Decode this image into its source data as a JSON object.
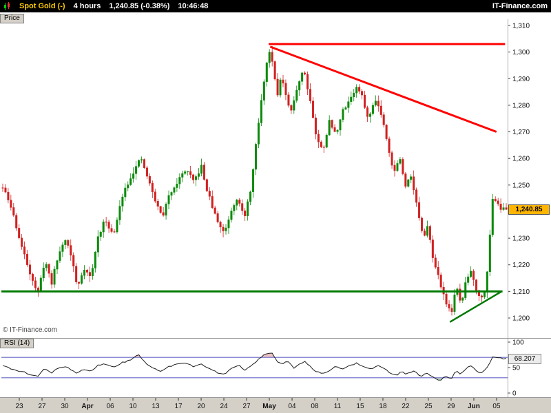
{
  "header": {
    "symbol": "Spot Gold (-)",
    "timeframe": "4 hours",
    "price_change": "1,240.85 (-0.38%)",
    "time": "10:46:48",
    "brand": "IT-Finance.com"
  },
  "price_panel": {
    "tab_label": "Price",
    "copyright": "© IT-Finance.com",
    "badge_label": "1,240.85"
  },
  "rsi_panel": {
    "label": "RSI (14)",
    "badge_label": "68.207"
  },
  "colors": {
    "up": "#0a8a0a",
    "down": "#d02020",
    "strip_bg": "#d4d0c8",
    "badge_price_bg": "#ffb400",
    "rsi_line": "#1a1a1a",
    "rsi_level": "#6666c8",
    "rsi_over_fill": "#e9b8b8",
    "rsi_under_fill": "#b9dcb9",
    "support": "#007a00",
    "resistance": "#ff0000"
  },
  "chart_data": {
    "type": "candlestick",
    "title": "Spot Gold (-) 4 hours",
    "last_price": 1240.85,
    "candle_count": 186,
    "y_axis": {
      "ticks": [
        {
          "v": 1310,
          "label": "1,310"
        },
        {
          "v": 1300,
          "label": "1,300"
        },
        {
          "v": 1290,
          "label": "1,290"
        },
        {
          "v": 1280,
          "label": "1,280"
        },
        {
          "v": 1270,
          "label": "1,270"
        },
        {
          "v": 1260,
          "label": "1,260"
        },
        {
          "v": 1250,
          "label": "1,250"
        },
        {
          "v": 1240,
          "label": "1,240"
        },
        {
          "v": 1230,
          "label": "1,230"
        },
        {
          "v": 1220,
          "label": "1,220"
        },
        {
          "v": 1210,
          "label": "1,210"
        },
        {
          "v": 1200,
          "label": "1,200"
        }
      ]
    },
    "x_ticks": [
      {
        "label": "23",
        "x": 0.0354
      },
      {
        "label": "27",
        "x": 0.0803
      },
      {
        "label": "30",
        "x": 0.1252
      },
      {
        "label": "Apr",
        "x": 0.1701
      },
      {
        "label": "06",
        "x": 0.215
      },
      {
        "label": "10",
        "x": 0.2599
      },
      {
        "label": "13",
        "x": 0.3048
      },
      {
        "label": "17",
        "x": 0.3497
      },
      {
        "label": "20",
        "x": 0.3946
      },
      {
        "label": "24",
        "x": 0.4395
      },
      {
        "label": "27",
        "x": 0.4844
      },
      {
        "label": "May",
        "x": 0.5293
      },
      {
        "label": "04",
        "x": 0.5742
      },
      {
        "label": "08",
        "x": 0.619
      },
      {
        "label": "11",
        "x": 0.6639
      },
      {
        "label": "15",
        "x": 0.7088
      },
      {
        "label": "18",
        "x": 0.7537
      },
      {
        "label": "22",
        "x": 0.7986
      },
      {
        "label": "25",
        "x": 0.8435
      },
      {
        "label": "29",
        "x": 0.8884
      },
      {
        "label": "Jun",
        "x": 0.9333
      },
      {
        "label": "05",
        "x": 0.9782
      }
    ],
    "price_path": [
      [
        0.0,
        1250
      ],
      [
        0.01,
        1246
      ],
      [
        0.022,
        1240
      ],
      [
        0.038,
        1228
      ],
      [
        0.055,
        1218
      ],
      [
        0.072,
        1209
      ],
      [
        0.086,
        1222
      ],
      [
        0.099,
        1213
      ],
      [
        0.113,
        1224
      ],
      [
        0.127,
        1230
      ],
      [
        0.14,
        1222
      ],
      [
        0.15,
        1211
      ],
      [
        0.163,
        1219
      ],
      [
        0.177,
        1215
      ],
      [
        0.19,
        1230
      ],
      [
        0.205,
        1237
      ],
      [
        0.222,
        1231
      ],
      [
        0.24,
        1247
      ],
      [
        0.258,
        1254
      ],
      [
        0.276,
        1260
      ],
      [
        0.29,
        1252
      ],
      [
        0.306,
        1243
      ],
      [
        0.318,
        1238
      ],
      [
        0.333,
        1247
      ],
      [
        0.35,
        1252
      ],
      [
        0.365,
        1256
      ],
      [
        0.38,
        1251
      ],
      [
        0.395,
        1257
      ],
      [
        0.403,
        1250
      ],
      [
        0.413,
        1244
      ],
      [
        0.425,
        1237
      ],
      [
        0.44,
        1232
      ],
      [
        0.455,
        1241
      ],
      [
        0.467,
        1246
      ],
      [
        0.48,
        1237
      ],
      [
        0.494,
        1250
      ],
      [
        0.507,
        1272
      ],
      [
        0.52,
        1291
      ],
      [
        0.529,
        1301
      ],
      [
        0.537,
        1295
      ],
      [
        0.545,
        1284
      ],
      [
        0.553,
        1291
      ],
      [
        0.562,
        1283
      ],
      [
        0.572,
        1277
      ],
      [
        0.583,
        1286
      ],
      [
        0.597,
        1294
      ],
      [
        0.61,
        1282
      ],
      [
        0.623,
        1267
      ],
      [
        0.635,
        1263
      ],
      [
        0.648,
        1274
      ],
      [
        0.66,
        1269
      ],
      [
        0.675,
        1278
      ],
      [
        0.69,
        1283
      ],
      [
        0.703,
        1287
      ],
      [
        0.715,
        1282
      ],
      [
        0.725,
        1274
      ],
      [
        0.738,
        1283
      ],
      [
        0.75,
        1277
      ],
      [
        0.762,
        1267
      ],
      [
        0.775,
        1254
      ],
      [
        0.786,
        1261
      ],
      [
        0.798,
        1249
      ],
      [
        0.808,
        1255
      ],
      [
        0.822,
        1241
      ],
      [
        0.834,
        1229
      ],
      [
        0.843,
        1235
      ],
      [
        0.854,
        1221
      ],
      [
        0.867,
        1213
      ],
      [
        0.877,
        1207
      ],
      [
        0.888,
        1201
      ],
      [
        0.898,
        1212
      ],
      [
        0.908,
        1205
      ],
      [
        0.918,
        1214
      ],
      [
        0.928,
        1218
      ],
      [
        0.938,
        1211
      ],
      [
        0.948,
        1207
      ],
      [
        0.957,
        1212
      ],
      [
        0.964,
        1228
      ],
      [
        0.971,
        1246
      ],
      [
        0.979,
        1244
      ],
      [
        0.988,
        1240.85
      ],
      [
        1.0,
        1241
      ]
    ],
    "overlays": [
      {
        "name": "resistance-horizontal-line",
        "color": "#ff0000",
        "width": 3,
        "points": [
          [
            0.528,
            1303
          ],
          [
            0.995,
            1303
          ]
        ]
      },
      {
        "name": "descending-trendline",
        "color": "#ff0000",
        "width": 3,
        "points": [
          [
            0.531,
            1302
          ],
          [
            0.978,
            1270
          ]
        ]
      },
      {
        "name": "support-horizontal-line",
        "color": "#007a00",
        "width": 3,
        "points": [
          [
            0.0,
            1210
          ],
          [
            0.99,
            1210
          ]
        ]
      },
      {
        "name": "ascending-trendline",
        "color": "#007a00",
        "width": 2.5,
        "points": [
          [
            0.886,
            1198.5
          ],
          [
            0.988,
            1210
          ]
        ]
      }
    ],
    "rsi": {
      "label": "RSI (14)",
      "range": [
        0,
        100
      ],
      "levels": [
        30,
        70
      ],
      "last_value": 68.207,
      "axis": [
        {
          "v": 100,
          "label": "100"
        },
        {
          "v": 50,
          "label": "50"
        },
        {
          "v": 0,
          "label": "0"
        }
      ],
      "path": [
        [
          0.0,
          55
        ],
        [
          0.02,
          47
        ],
        [
          0.04,
          42
        ],
        [
          0.06,
          36
        ],
        [
          0.072,
          33
        ],
        [
          0.086,
          48
        ],
        [
          0.099,
          40
        ],
        [
          0.113,
          50
        ],
        [
          0.127,
          53
        ],
        [
          0.15,
          38
        ],
        [
          0.163,
          47
        ],
        [
          0.177,
          43
        ],
        [
          0.19,
          54
        ],
        [
          0.205,
          58
        ],
        [
          0.222,
          50
        ],
        [
          0.24,
          60
        ],
        [
          0.258,
          66
        ],
        [
          0.27,
          76
        ],
        [
          0.282,
          62
        ],
        [
          0.298,
          50
        ],
        [
          0.315,
          42
        ],
        [
          0.333,
          53
        ],
        [
          0.35,
          57
        ],
        [
          0.365,
          60
        ],
        [
          0.38,
          52
        ],
        [
          0.395,
          58
        ],
        [
          0.413,
          46
        ],
        [
          0.428,
          40
        ],
        [
          0.443,
          38
        ],
        [
          0.458,
          51
        ],
        [
          0.47,
          55
        ],
        [
          0.482,
          44
        ],
        [
          0.496,
          56
        ],
        [
          0.51,
          68
        ],
        [
          0.525,
          78
        ],
        [
          0.533,
          80
        ],
        [
          0.545,
          62
        ],
        [
          0.556,
          58
        ],
        [
          0.565,
          63
        ],
        [
          0.577,
          49
        ],
        [
          0.59,
          57
        ],
        [
          0.6,
          61
        ],
        [
          0.615,
          47
        ],
        [
          0.63,
          38
        ],
        [
          0.645,
          43
        ],
        [
          0.66,
          52
        ],
        [
          0.675,
          47
        ],
        [
          0.69,
          55
        ],
        [
          0.703,
          59
        ],
        [
          0.717,
          50
        ],
        [
          0.73,
          46
        ],
        [
          0.742,
          54
        ],
        [
          0.755,
          48
        ],
        [
          0.768,
          40
        ],
        [
          0.78,
          34
        ],
        [
          0.79,
          43
        ],
        [
          0.8,
          36
        ],
        [
          0.815,
          45
        ],
        [
          0.828,
          31
        ],
        [
          0.842,
          40
        ],
        [
          0.854,
          29
        ],
        [
          0.867,
          25
        ],
        [
          0.877,
          33
        ],
        [
          0.888,
          26
        ],
        [
          0.898,
          46
        ],
        [
          0.908,
          37
        ],
        [
          0.918,
          49
        ],
        [
          0.928,
          53
        ],
        [
          0.938,
          44
        ],
        [
          0.948,
          39
        ],
        [
          0.957,
          45
        ],
        [
          0.964,
          58
        ],
        [
          0.971,
          73
        ],
        [
          0.979,
          70
        ],
        [
          0.988,
          68.2
        ],
        [
          1.0,
          68.2
        ]
      ]
    }
  }
}
